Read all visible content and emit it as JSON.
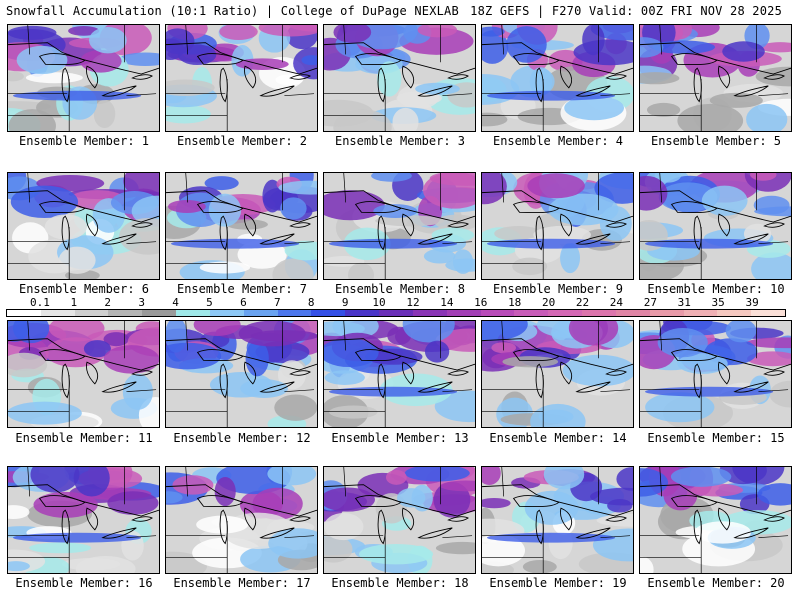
{
  "header": {
    "left": "Snowfall Accumulation (10:1 Ratio) | College of DuPage NEXLAB",
    "right": "18Z GEFS | F270 Valid: 00Z FRI NOV 28 2025"
  },
  "panels": [
    {
      "label": "Ensemble Member: 1"
    },
    {
      "label": "Ensemble Member: 2"
    },
    {
      "label": "Ensemble Member: 3"
    },
    {
      "label": "Ensemble Member: 4"
    },
    {
      "label": "Ensemble Member: 5"
    },
    {
      "label": "Ensemble Member: 6"
    },
    {
      "label": "Ensemble Member: 7"
    },
    {
      "label": "Ensemble Member: 8"
    },
    {
      "label": "Ensemble Member: 9"
    },
    {
      "label": "Ensemble Member: 10"
    },
    {
      "label": "Ensemble Member: 11"
    },
    {
      "label": "Ensemble Member: 12"
    },
    {
      "label": "Ensemble Member: 13"
    },
    {
      "label": "Ensemble Member: 14"
    },
    {
      "label": "Ensemble Member: 15"
    },
    {
      "label": "Ensemble Member: 16"
    },
    {
      "label": "Ensemble Member: 17"
    },
    {
      "label": "Ensemble Member: 18"
    },
    {
      "label": "Ensemble Member: 19"
    },
    {
      "label": "Ensemble Member: 20"
    }
  ],
  "colorbar": {
    "ticks": [
      "0.1",
      "1",
      "2",
      "3",
      "4",
      "5",
      "6",
      "7",
      "8",
      "9",
      "10",
      "12",
      "14",
      "16",
      "18",
      "20",
      "22",
      "24",
      "27",
      "31",
      "35",
      "39"
    ],
    "colors": [
      "#ffffff",
      "#e6e6e6",
      "#cfcfcf",
      "#b4b4b4",
      "#9a9a9a",
      "#9fe8e8",
      "#8ec8f5",
      "#6aa3f0",
      "#4d77ec",
      "#3550e6",
      "#4a35c8",
      "#6a2fb8",
      "#8a35b5",
      "#a23fb5",
      "#b84bb8",
      "#c85cb8",
      "#d468b4",
      "#dc75ac",
      "#e085a5",
      "#e89aa8",
      "#f0b0b4",
      "#f5c8c0",
      "#fbe0d8"
    ]
  }
}
